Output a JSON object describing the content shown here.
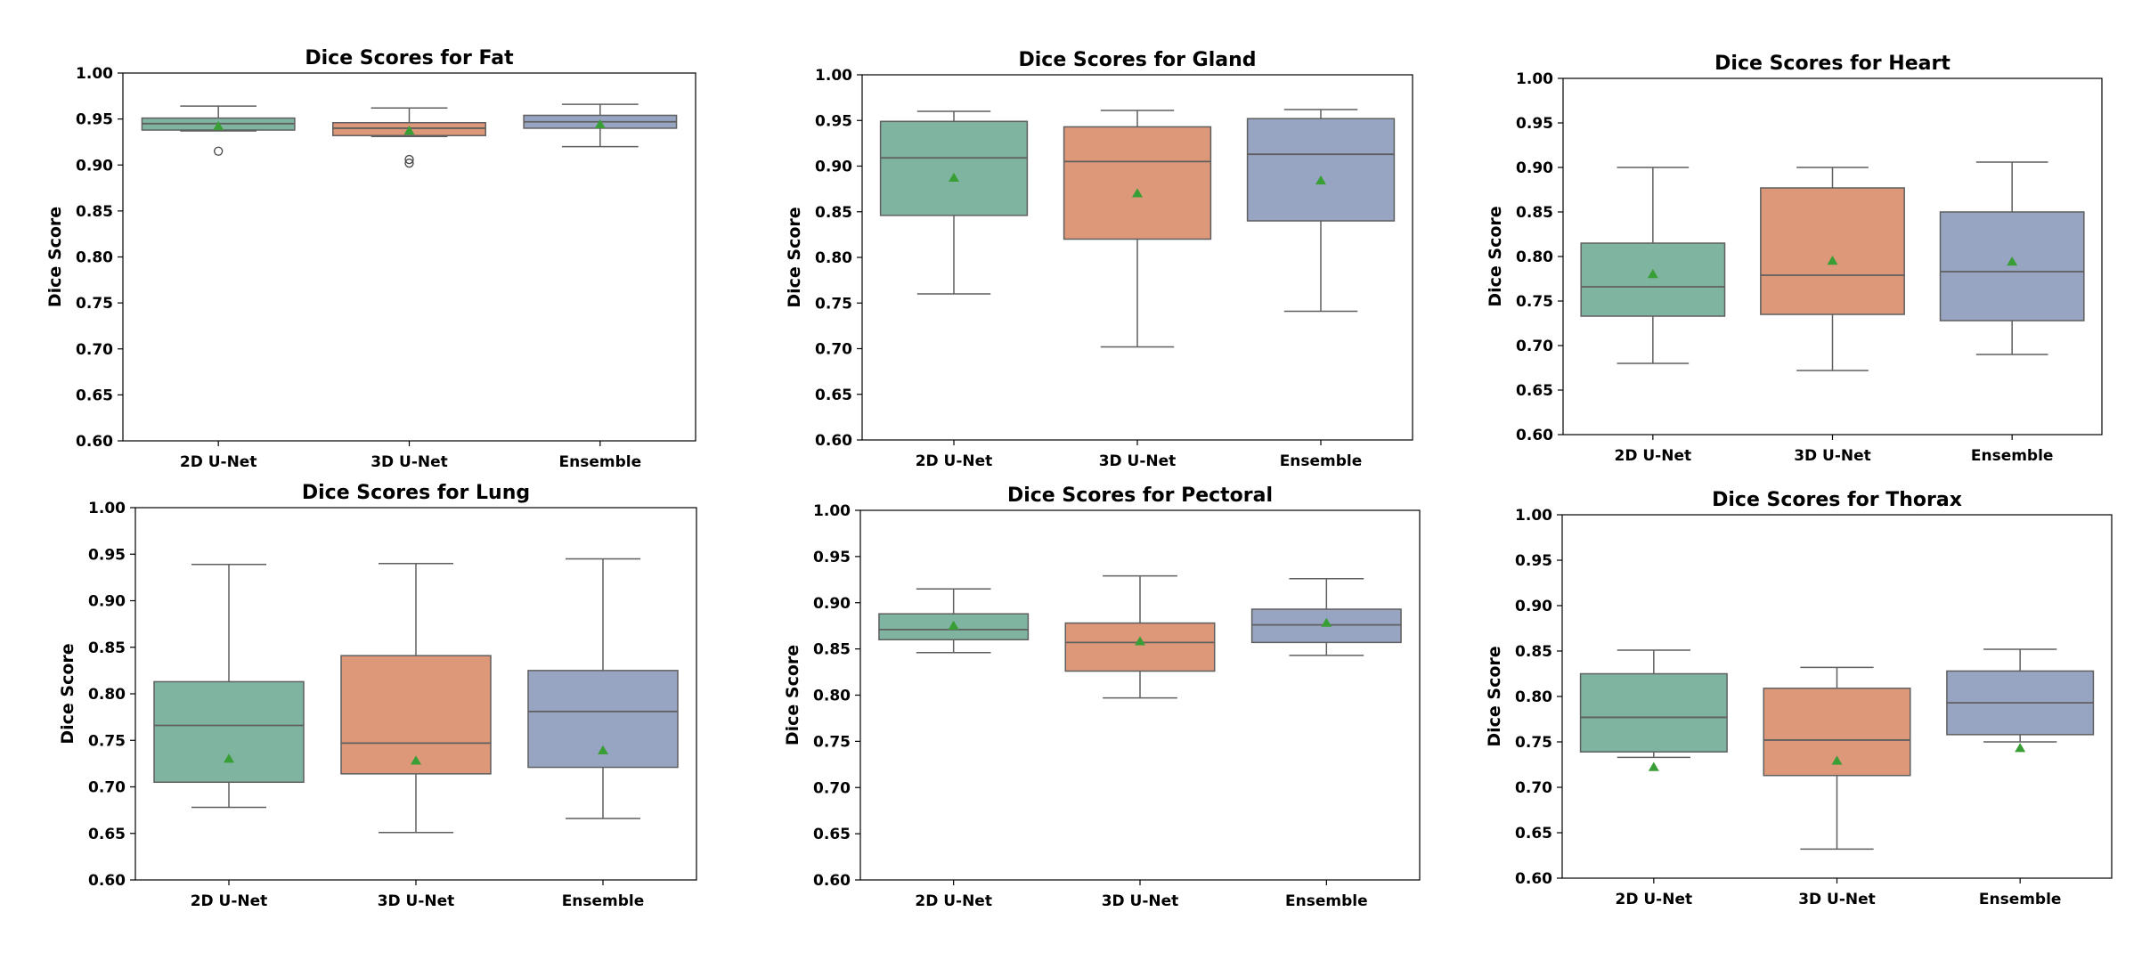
{
  "chart_data": [
    {
      "type": "box",
      "title": "Dice Scores for Fat",
      "xlabel": "",
      "ylabel": "Dice Score",
      "ylim": [
        0.6,
        1.0
      ],
      "yticks": [
        "0.60",
        "0.65",
        "0.70",
        "0.75",
        "0.80",
        "0.85",
        "0.90",
        "0.95",
        "1.00"
      ],
      "categories": [
        "2D U-Net",
        "3D U-Net",
        "Ensemble"
      ],
      "boxes": [
        {
          "name": "2D U-Net",
          "whisker_low": 0.937,
          "q1": 0.938,
          "median": 0.945,
          "q3": 0.951,
          "whisker_high": 0.964,
          "mean": 0.942,
          "outliers": [
            0.915
          ]
        },
        {
          "name": "3D U-Net",
          "whisker_low": 0.931,
          "q1": 0.932,
          "median": 0.94,
          "q3": 0.946,
          "whisker_high": 0.962,
          "mean": 0.937,
          "outliers": [
            0.906,
            0.902
          ]
        },
        {
          "name": "Ensemble",
          "whisker_low": 0.92,
          "q1": 0.94,
          "median": 0.947,
          "q3": 0.954,
          "whisker_high": 0.966,
          "mean": 0.944,
          "outliers": []
        }
      ]
    },
    {
      "type": "box",
      "title": "Dice Scores for Gland",
      "xlabel": "",
      "ylabel": "Dice Score",
      "ylim": [
        0.6,
        1.0
      ],
      "yticks": [
        "0.60",
        "0.65",
        "0.70",
        "0.75",
        "0.80",
        "0.85",
        "0.90",
        "0.95",
        "1.00"
      ],
      "categories": [
        "2D U-Net",
        "3D U-Net",
        "Ensemble"
      ],
      "boxes": [
        {
          "name": "2D U-Net",
          "whisker_low": 0.76,
          "q1": 0.846,
          "median": 0.909,
          "q3": 0.949,
          "whisker_high": 0.96,
          "mean": 0.887,
          "outliers": []
        },
        {
          "name": "3D U-Net",
          "whisker_low": 0.702,
          "q1": 0.82,
          "median": 0.905,
          "q3": 0.943,
          "whisker_high": 0.961,
          "mean": 0.87,
          "outliers": []
        },
        {
          "name": "Ensemble",
          "whisker_low": 0.741,
          "q1": 0.84,
          "median": 0.913,
          "q3": 0.952,
          "whisker_high": 0.962,
          "mean": 0.884,
          "outliers": []
        }
      ]
    },
    {
      "type": "box",
      "title": "Dice Scores for Heart",
      "xlabel": "",
      "ylabel": "Dice Score",
      "ylim": [
        0.6,
        1.0
      ],
      "yticks": [
        "0.60",
        "0.65",
        "0.70",
        "0.75",
        "0.80",
        "0.85",
        "0.90",
        "0.95",
        "1.00"
      ],
      "categories": [
        "2D U-Net",
        "3D U-Net",
        "Ensemble"
      ],
      "boxes": [
        {
          "name": "2D U-Net",
          "whisker_low": 0.68,
          "q1": 0.733,
          "median": 0.766,
          "q3": 0.815,
          "whisker_high": 0.9,
          "mean": 0.78,
          "outliers": []
        },
        {
          "name": "3D U-Net",
          "whisker_low": 0.672,
          "q1": 0.735,
          "median": 0.779,
          "q3": 0.877,
          "whisker_high": 0.9,
          "mean": 0.795,
          "outliers": []
        },
        {
          "name": "Ensemble",
          "whisker_low": 0.69,
          "q1": 0.728,
          "median": 0.783,
          "q3": 0.85,
          "whisker_high": 0.906,
          "mean": 0.794,
          "outliers": []
        }
      ]
    },
    {
      "type": "box",
      "title": "Dice Scores for Lung",
      "xlabel": "",
      "ylabel": "Dice Score",
      "ylim": [
        0.6,
        1.0
      ],
      "yticks": [
        "0.60",
        "0.65",
        "0.70",
        "0.75",
        "0.80",
        "0.85",
        "0.90",
        "0.95",
        "1.00"
      ],
      "categories": [
        "2D U-Net",
        "3D U-Net",
        "Ensemble"
      ],
      "boxes": [
        {
          "name": "2D U-Net",
          "whisker_low": 0.678,
          "q1": 0.705,
          "median": 0.766,
          "q3": 0.813,
          "whisker_high": 0.939,
          "mean": 0.73,
          "outliers": []
        },
        {
          "name": "3D U-Net",
          "whisker_low": 0.651,
          "q1": 0.714,
          "median": 0.747,
          "q3": 0.841,
          "whisker_high": 0.94,
          "mean": 0.728,
          "outliers": []
        },
        {
          "name": "Ensemble",
          "whisker_low": 0.666,
          "q1": 0.721,
          "median": 0.781,
          "q3": 0.825,
          "whisker_high": 0.945,
          "mean": 0.739,
          "outliers": []
        }
      ]
    },
    {
      "type": "box",
      "title": "Dice Scores for Pectoral",
      "xlabel": "",
      "ylabel": "Dice Score",
      "ylim": [
        0.6,
        1.0
      ],
      "yticks": [
        "0.60",
        "0.65",
        "0.70",
        "0.75",
        "0.80",
        "0.85",
        "0.90",
        "0.95",
        "1.00"
      ],
      "categories": [
        "2D U-Net",
        "3D U-Net",
        "Ensemble"
      ],
      "boxes": [
        {
          "name": "2D U-Net",
          "whisker_low": 0.846,
          "q1": 0.86,
          "median": 0.871,
          "q3": 0.888,
          "whisker_high": 0.915,
          "mean": 0.875,
          "outliers": []
        },
        {
          "name": "3D U-Net",
          "whisker_low": 0.797,
          "q1": 0.826,
          "median": 0.857,
          "q3": 0.878,
          "whisker_high": 0.929,
          "mean": 0.858,
          "outliers": []
        },
        {
          "name": "Ensemble",
          "whisker_low": 0.843,
          "q1": 0.857,
          "median": 0.876,
          "q3": 0.893,
          "whisker_high": 0.926,
          "mean": 0.878,
          "outliers": []
        }
      ]
    },
    {
      "type": "box",
      "title": "Dice Scores for Thorax",
      "xlabel": "",
      "ylabel": "Dice Score",
      "ylim": [
        0.6,
        1.0
      ],
      "yticks": [
        "0.60",
        "0.65",
        "0.70",
        "0.75",
        "0.80",
        "0.85",
        "0.90",
        "0.95",
        "1.00"
      ],
      "categories": [
        "2D U-Net",
        "3D U-Net",
        "Ensemble"
      ],
      "boxes": [
        {
          "name": "2D U-Net",
          "whisker_low": 0.733,
          "q1": 0.739,
          "median": 0.777,
          "q3": 0.825,
          "whisker_high": 0.851,
          "mean": 0.722,
          "outliers": []
        },
        {
          "name": "3D U-Net",
          "whisker_low": 0.632,
          "q1": 0.713,
          "median": 0.752,
          "q3": 0.809,
          "whisker_high": 0.832,
          "mean": 0.729,
          "outliers": []
        },
        {
          "name": "Ensemble",
          "whisker_low": 0.75,
          "q1": 0.758,
          "median": 0.793,
          "q3": 0.828,
          "whisker_high": 0.852,
          "mean": 0.743,
          "outliers": []
        }
      ]
    }
  ],
  "colors": {
    "2D U-Net": "#7fb5a0",
    "3D U-Net": "#dd987a",
    "Ensemble": "#97a5c3",
    "line": "#5f5f5f",
    "mean_marker": "#3a9e36"
  }
}
